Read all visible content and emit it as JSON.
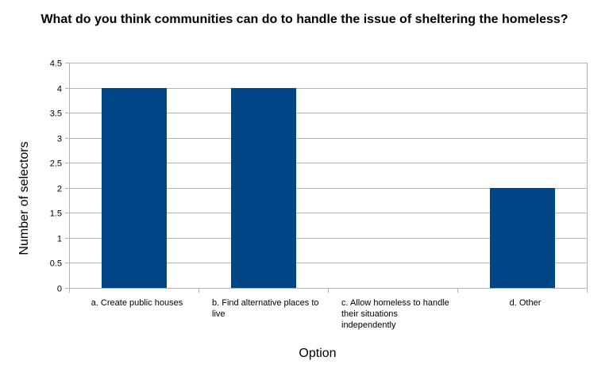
{
  "chart_data": {
    "type": "bar",
    "title": "What do you think communities can do to handle the issue of sheltering the homeless?",
    "xlabel": "Option",
    "ylabel": "Number of selectors",
    "categories": [
      "a. Create public houses",
      "b. Find alternative places to live",
      "c. Allow homeless to handle their situations independently",
      "d. Other"
    ],
    "values": [
      4,
      4,
      0,
      2
    ],
    "ylim": [
      0,
      4.5
    ],
    "yticks": [
      "0",
      "0.5",
      "1",
      "1.5",
      "2",
      "2.5",
      "3",
      "3.5",
      "4",
      "4.5"
    ],
    "grid": true,
    "legend": "none",
    "bar_color": "#004586",
    "grid_color": "#b3b3b3"
  }
}
